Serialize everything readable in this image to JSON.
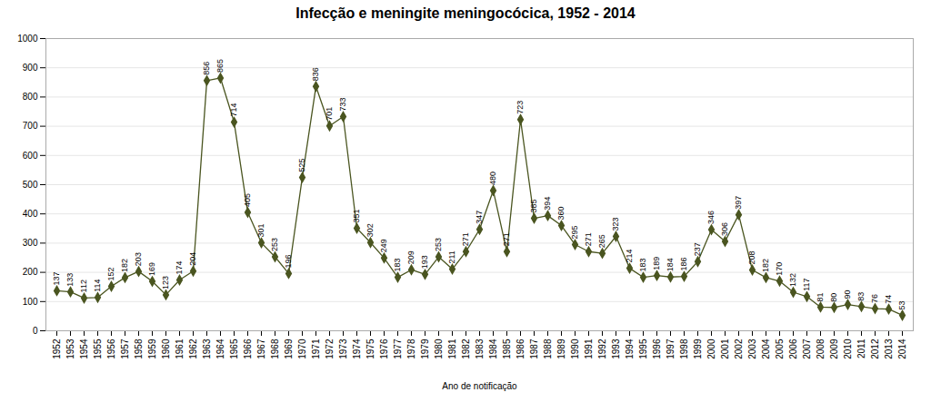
{
  "chart_data": {
    "type": "line",
    "title": "Infecção e meningite meningocócica, 1952 - 2014",
    "xlabel": "Ano de notificação",
    "x": [
      1952,
      1953,
      1954,
      1955,
      1956,
      1957,
      1958,
      1959,
      1960,
      1961,
      1962,
      1963,
      1964,
      1965,
      1966,
      1967,
      1968,
      1969,
      1970,
      1971,
      1972,
      1973,
      1974,
      1975,
      1976,
      1977,
      1978,
      1979,
      1980,
      1981,
      1982,
      1983,
      1984,
      1985,
      1986,
      1987,
      1988,
      1989,
      1990,
      1991,
      1992,
      1993,
      1994,
      1995,
      1996,
      1997,
      1998,
      1999,
      2000,
      2001,
      2002,
      2003,
      2004,
      2005,
      2006,
      2007,
      2008,
      2009,
      2010,
      2011,
      2012,
      2013,
      2014
    ],
    "values": [
      137,
      133,
      112,
      114,
      152,
      182,
      203,
      169,
      123,
      174,
      204,
      856,
      865,
      714,
      405,
      301,
      253,
      196,
      525,
      836,
      701,
      733,
      351,
      302,
      249,
      183,
      209,
      193,
      253,
      211,
      271,
      347,
      480,
      271,
      723,
      385,
      394,
      360,
      295,
      271,
      265,
      323,
      214,
      183,
      189,
      184,
      186,
      237,
      346,
      306,
      397,
      208,
      182,
      170,
      132,
      117,
      81,
      80,
      90,
      83,
      76,
      74,
      53
    ],
    "color": "#4a5520",
    "marker": "diamond",
    "data_labels": true,
    "grid": "y",
    "xlim": [
      1951.2,
      2014.8
    ],
    "xticks": [
      1952,
      1953,
      1954,
      1955,
      1956,
      1957,
      1958,
      1959,
      1960,
      1961,
      1962,
      1963,
      1964,
      1965,
      1966,
      1967,
      1968,
      1969,
      1970,
      1971,
      1972,
      1973,
      1974,
      1975,
      1976,
      1977,
      1978,
      1979,
      1980,
      1981,
      1982,
      1983,
      1984,
      1985,
      1986,
      1987,
      1988,
      1989,
      1990,
      1991,
      1992,
      1993,
      1994,
      1995,
      1996,
      1997,
      1998,
      1999,
      2000,
      2001,
      2002,
      2003,
      2004,
      2005,
      2006,
      2007,
      2008,
      2009,
      2010,
      2011,
      2012,
      2013,
      2014
    ],
    "ylim": [
      0,
      1000
    ],
    "yticks": [
      0,
      100,
      200,
      300,
      400,
      500,
      600,
      700,
      800,
      900,
      1000
    ]
  }
}
